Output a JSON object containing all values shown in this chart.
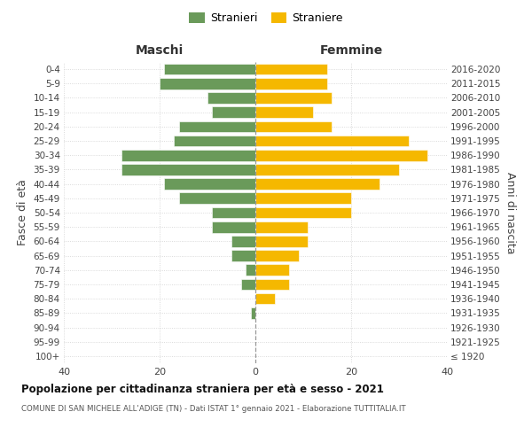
{
  "age_groups": [
    "100+",
    "95-99",
    "90-94",
    "85-89",
    "80-84",
    "75-79",
    "70-74",
    "65-69",
    "60-64",
    "55-59",
    "50-54",
    "45-49",
    "40-44",
    "35-39",
    "30-34",
    "25-29",
    "20-24",
    "15-19",
    "10-14",
    "5-9",
    "0-4"
  ],
  "birth_years": [
    "≤ 1920",
    "1921-1925",
    "1926-1930",
    "1931-1935",
    "1936-1940",
    "1941-1945",
    "1946-1950",
    "1951-1955",
    "1956-1960",
    "1961-1965",
    "1966-1970",
    "1971-1975",
    "1976-1980",
    "1981-1985",
    "1986-1990",
    "1991-1995",
    "1996-2000",
    "2001-2005",
    "2006-2010",
    "2011-2015",
    "2016-2020"
  ],
  "males": [
    0,
    0,
    0,
    1,
    0,
    3,
    2,
    5,
    5,
    9,
    9,
    16,
    19,
    28,
    28,
    17,
    16,
    9,
    10,
    20,
    19
  ],
  "females": [
    0,
    0,
    0,
    0,
    4,
    7,
    7,
    9,
    11,
    11,
    20,
    20,
    26,
    30,
    36,
    32,
    16,
    12,
    16,
    15,
    15
  ],
  "male_color": "#6a9a5a",
  "female_color": "#f5b800",
  "title": "Popolazione per cittadinanza straniera per età e sesso - 2021",
  "subtitle": "COMUNE DI SAN MICHELE ALL'ADIGE (TN) - Dati ISTAT 1° gennaio 2021 - Elaborazione TUTTITALIA.IT",
  "left_label": "Maschi",
  "right_label": "Femmine",
  "y_left_label": "Fasce di età",
  "y_right_label": "Anni di nascita",
  "legend_male": "Stranieri",
  "legend_female": "Straniere",
  "xlim": 40,
  "background_color": "#ffffff",
  "grid_color": "#d0d0d0",
  "bar_edge_color": "#ffffff"
}
